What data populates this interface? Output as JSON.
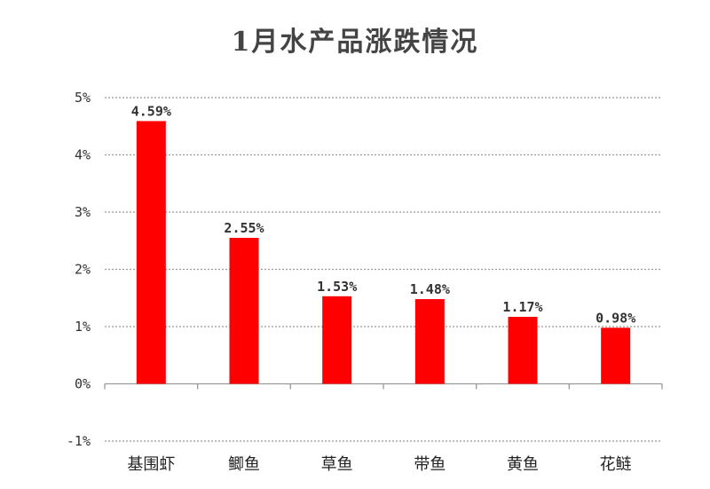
{
  "chart_data": {
    "type": "bar",
    "title": "1月水产品涨跌情况",
    "xlabel": "",
    "ylabel": "",
    "categories": [
      "基围虾",
      "鲫鱼",
      "草鱼",
      "带鱼",
      "黄鱼",
      "花鲢"
    ],
    "values": [
      4.59,
      2.55,
      1.53,
      1.48,
      1.17,
      0.98
    ],
    "value_labels": [
      "4.59%",
      "2.55%",
      "1.53%",
      "1.48%",
      "1.17%",
      "0.98%"
    ],
    "ylim": [
      -1,
      5
    ],
    "yticks": [
      -1,
      0,
      1,
      2,
      3,
      4,
      5
    ],
    "ytick_labels": [
      "-1%",
      "0%",
      "1%",
      "2%",
      "3%",
      "4%",
      "5%"
    ],
    "bar_color": "#ff0000",
    "grid": true,
    "legend": "none"
  }
}
